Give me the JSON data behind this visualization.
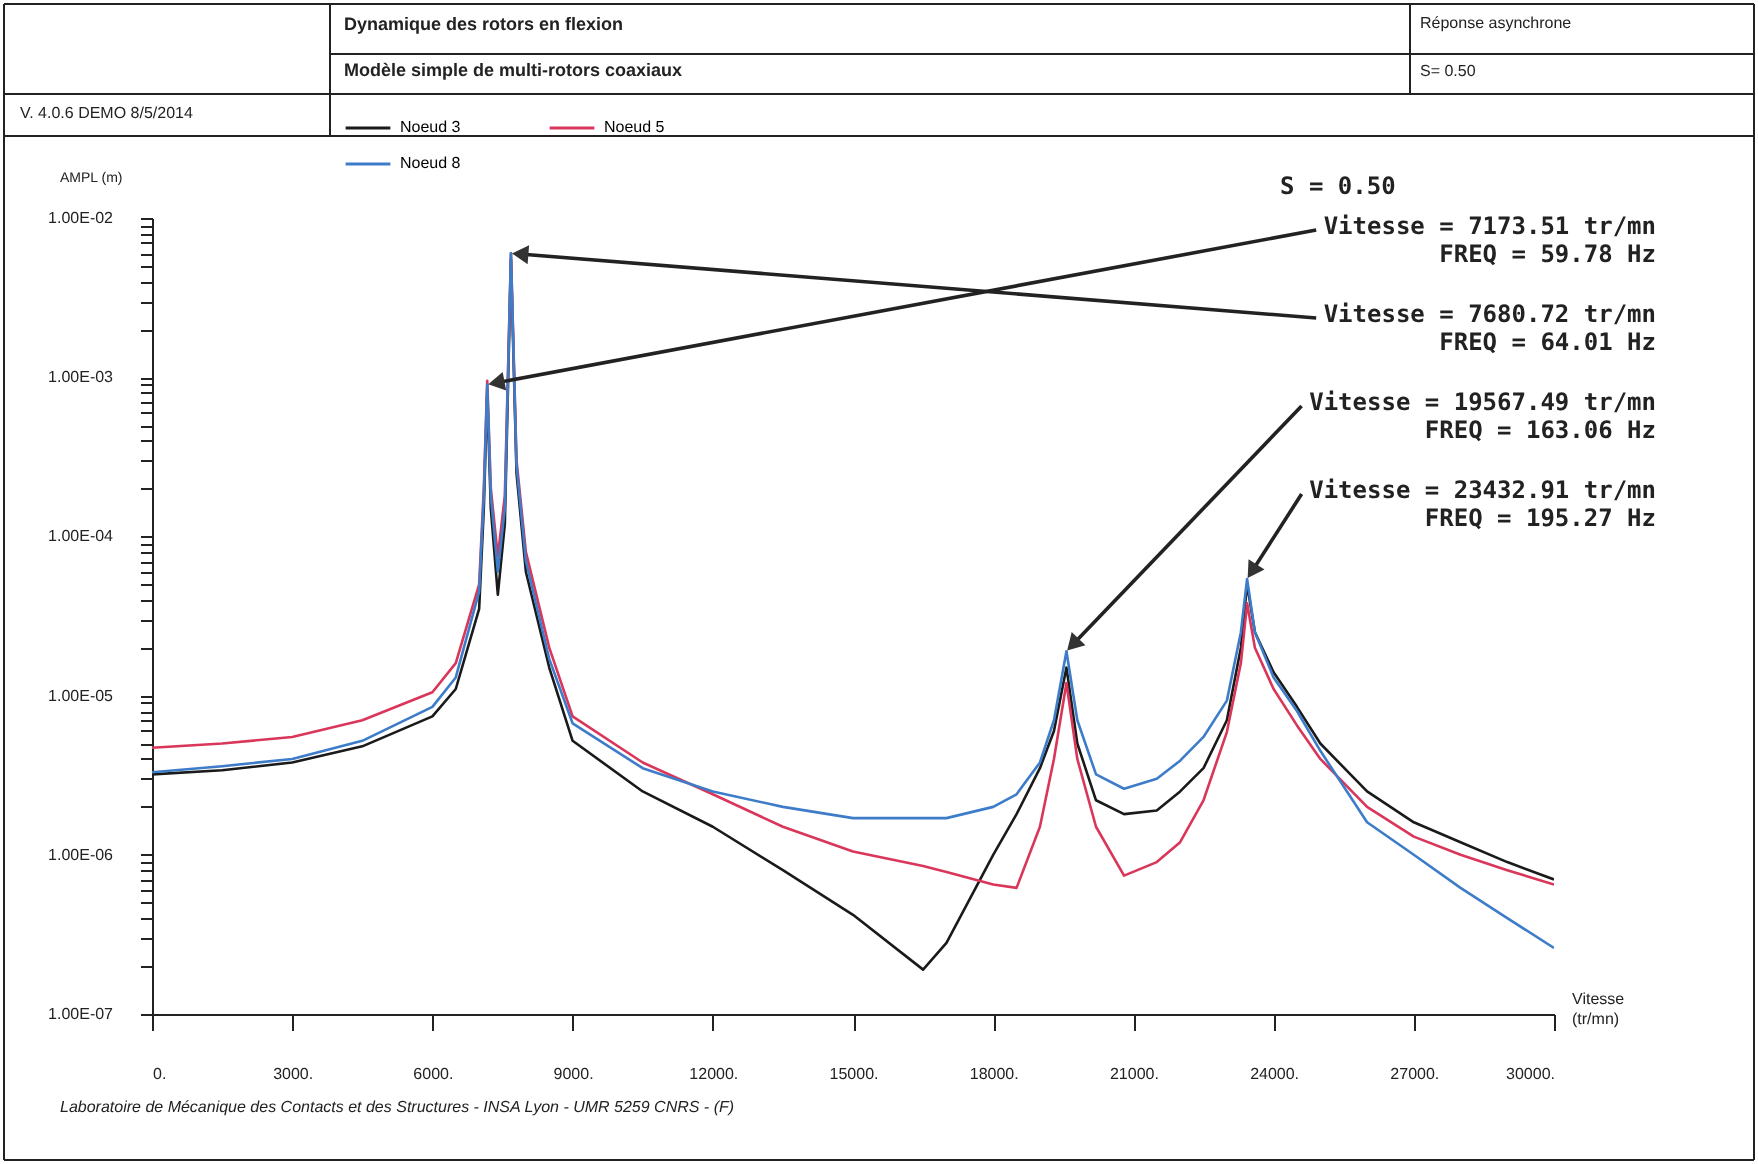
{
  "chart_data": {
    "type": "line",
    "title": "Dynamique des rotors en flexion",
    "subtitle": "Modèle simple de multi-rotors coaxiaux",
    "ylabel": "AMPL (m)",
    "xlabel": "Vitesse (tr/mn)",
    "x": [
      0,
      1500,
      3000,
      4500,
      6000,
      6500,
      7000,
      7100,
      7173.51,
      7250,
      7400,
      7550,
      7680.72,
      7800,
      8000,
      8500,
      9000,
      10500,
      12000,
      13500,
      15000,
      16500,
      17000,
      18000,
      18500,
      19000,
      19300,
      19567.49,
      19800,
      20200,
      20800,
      21500,
      22000,
      22500,
      23000,
      23300,
      23432.91,
      23600,
      24000,
      24500,
      25000,
      26000,
      27000,
      28000,
      29000,
      30000
    ],
    "series": [
      {
        "name": "Noeud 3",
        "color": "#1a1a1a",
        "values": [
          3.2e-06,
          3.4e-06,
          3.8e-06,
          4.8e-06,
          7.4e-06,
          1.1e-05,
          3.5e-05,
          0.00015,
          0.0008,
          0.00015,
          4.3e-05,
          0.00012,
          0.0055,
          0.00025,
          6e-05,
          1.5e-05,
          5.2e-06,
          2.5e-06,
          1.5e-06,
          8e-07,
          4.2e-07,
          1.9e-07,
          2.8e-07,
          1e-06,
          1.8e-06,
          3.5e-06,
          6e-06,
          1.5e-05,
          5e-06,
          2.2e-06,
          1.8e-06,
          1.9e-06,
          2.5e-06,
          3.5e-06,
          7e-06,
          2e-05,
          5e-05,
          2.5e-05,
          1.4e-05,
          8.5e-06,
          5e-06,
          2.5e-06,
          1.6e-06,
          1.2e-06,
          9e-07,
          7e-07
        ]
      },
      {
        "name": "Noeud 5",
        "color": "#d9365a",
        "values": [
          4.7e-06,
          5e-06,
          5.5e-06,
          7e-06,
          1.05e-05,
          1.6e-05,
          5e-05,
          0.0002,
          0.00095,
          0.0002,
          7.5e-05,
          0.00018,
          0.006,
          0.0003,
          8e-05,
          2e-05,
          7.4e-06,
          3.8e-06,
          2.4e-06,
          1.5e-06,
          1.05e-06,
          8.5e-07,
          7.8e-07,
          6.5e-07,
          6.2e-07,
          1.5e-06,
          4e-06,
          1.2e-05,
          4e-06,
          1.5e-06,
          7.4e-07,
          9e-07,
          1.2e-06,
          2.2e-06,
          5.9e-06,
          1.6e-05,
          3.8e-05,
          2e-05,
          1.1e-05,
          6.5e-06,
          4e-06,
          2e-06,
          1.3e-06,
          1e-06,
          8e-07,
          6.5e-07
        ]
      },
      {
        "name": "Noeud 8",
        "color": "#3d7cc9",
        "values": [
          3.3e-06,
          3.6e-06,
          4e-06,
          5.2e-06,
          8.5e-06,
          1.3e-05,
          4.5e-05,
          0.00018,
          0.0009,
          0.00018,
          6e-05,
          0.00015,
          0.006,
          0.00028,
          7e-05,
          1.7e-05,
          6.7e-06,
          3.5e-06,
          2.5e-06,
          2e-06,
          1.7e-06,
          1.7e-06,
          1.7e-06,
          2e-06,
          2.4e-06,
          3.8e-06,
          7e-06,
          1.9e-05,
          7e-06,
          3.2e-06,
          2.6e-06,
          3e-06,
          3.9e-06,
          5.5e-06,
          9.3e-06,
          2.5e-05,
          5.4e-05,
          2.5e-05,
          1.3e-05,
          8e-06,
          4.5e-06,
          1.6e-06,
          1e-06,
          6.2e-07,
          4e-07,
          2.6e-07
        ]
      }
    ],
    "xlim": [
      0,
      30000
    ],
    "xticks": [
      {
        "value": 0,
        "label": "0."
      },
      {
        "value": 3000,
        "label": "3000."
      },
      {
        "value": 6000,
        "label": "6000."
      },
      {
        "value": 9000,
        "label": "9000."
      },
      {
        "value": 12000,
        "label": "12000."
      },
      {
        "value": 15000,
        "label": "15000."
      },
      {
        "value": 18000,
        "label": "18000."
      },
      {
        "value": 21000,
        "label": "21000."
      },
      {
        "value": 24000,
        "label": "24000."
      },
      {
        "value": 27000,
        "label": "27000."
      },
      {
        "value": 30000,
        "label": "30000."
      }
    ],
    "ylim": [
      1e-07,
      0.01
    ],
    "yticks": [
      {
        "value": 1e-07,
        "label": "1.00E-07"
      },
      {
        "value": 2e-07,
        "label": null
      },
      {
        "value": 3e-07,
        "label": null
      },
      {
        "value": 4e-07,
        "label": null
      },
      {
        "value": 5e-07,
        "label": null
      },
      {
        "value": 6e-07,
        "label": null
      },
      {
        "value": 7e-07,
        "label": null
      },
      {
        "value": 8e-07,
        "label": null
      },
      {
        "value": 9e-07,
        "label": null
      },
      {
        "value": 1e-06,
        "label": "1.00E-06"
      },
      {
        "value": 2e-06,
        "label": null
      },
      {
        "value": 3e-06,
        "label": null
      },
      {
        "value": 4e-06,
        "label": null
      },
      {
        "value": 5e-06,
        "label": null
      },
      {
        "value": 6e-06,
        "label": null
      },
      {
        "value": 7e-06,
        "label": null
      },
      {
        "value": 8e-06,
        "label": null
      },
      {
        "value": 9e-06,
        "label": null
      },
      {
        "value": 1e-05,
        "label": "1.00E-05"
      },
      {
        "value": 2e-05,
        "label": null
      },
      {
        "value": 3e-05,
        "label": null
      },
      {
        "value": 4e-05,
        "label": null
      },
      {
        "value": 5e-05,
        "label": null
      },
      {
        "value": 6e-05,
        "label": null
      },
      {
        "value": 7e-05,
        "label": null
      },
      {
        "value": 8e-05,
        "label": null
      },
      {
        "value": 9e-05,
        "label": null
      },
      {
        "value": 0.0001,
        "label": "1.00E-04"
      },
      {
        "value": 0.0002,
        "label": null
      },
      {
        "value": 0.0003,
        "label": null
      },
      {
        "value": 0.0004,
        "label": null
      },
      {
        "value": 0.0005,
        "label": null
      },
      {
        "value": 0.0006,
        "label": null
      },
      {
        "value": 0.0007,
        "label": null
      },
      {
        "value": 0.0008,
        "label": null
      },
      {
        "value": 0.0009,
        "label": null
      },
      {
        "value": 0.001,
        "label": "1.00E-03"
      },
      {
        "value": 0.002,
        "label": null
      },
      {
        "value": 0.003,
        "label": null
      },
      {
        "value": 0.004,
        "label": null
      },
      {
        "value": 0.005,
        "label": null
      },
      {
        "value": 0.006,
        "label": null
      },
      {
        "value": 0.007,
        "label": null
      },
      {
        "value": 0.008,
        "label": null
      },
      {
        "value": 0.009,
        "label": null
      },
      {
        "value": 0.01,
        "label": "1.00E-02"
      }
    ],
    "log": "y",
    "grid": false,
    "legend": "top",
    "marker": "none",
    "line_style": "solid",
    "annotations": [
      "Réponse asynchrone",
      "S= 0.50",
      "V. 4.0.6 DEMO   8/5/2014",
      "S = 0.50",
      {
        "text": "Vitesse = 7173.51 tr/mn\nFREQ = 59.78 Hz",
        "x": 7173.51,
        "y": 0.0009
      },
      {
        "text": "Vitesse = 7680.72 tr/mn\nFREQ = 64.01 Hz",
        "x": 7680.72,
        "y": 0.006
      },
      {
        "text": "Vitesse = 19567.49 tr/mn\nFREQ = 163.06 Hz",
        "x": 19567.49,
        "y": 1.9e-05
      },
      {
        "text": "Vitesse = 23432.91 tr/mn\nFREQ = 195.27 Hz",
        "x": 23432.91,
        "y": 5.4e-05
      },
      "Laboratoire de Mécanique des Contacts et des Structures - INSA Lyon - UMR 5259 CNRS - (F)"
    ]
  }
}
